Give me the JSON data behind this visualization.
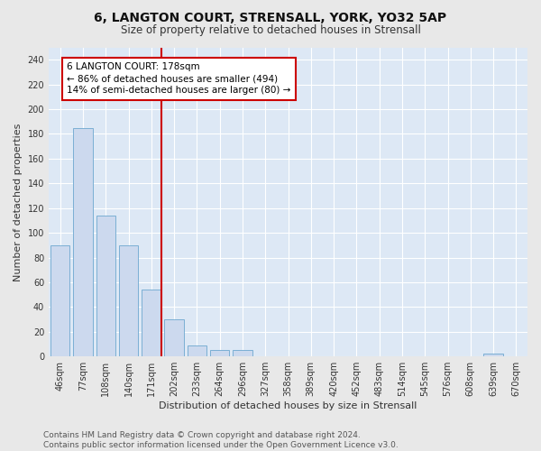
{
  "title1": "6, LANGTON COURT, STRENSALL, YORK, YO32 5AP",
  "title2": "Size of property relative to detached houses in Strensall",
  "xlabel": "Distribution of detached houses by size in Strensall",
  "ylabel": "Number of detached properties",
  "bar_labels": [
    "46sqm",
    "77sqm",
    "108sqm",
    "140sqm",
    "171sqm",
    "202sqm",
    "233sqm",
    "264sqm",
    "296sqm",
    "327sqm",
    "358sqm",
    "389sqm",
    "420sqm",
    "452sqm",
    "483sqm",
    "514sqm",
    "545sqm",
    "576sqm",
    "608sqm",
    "639sqm",
    "670sqm"
  ],
  "bar_values": [
    90,
    185,
    114,
    90,
    54,
    30,
    9,
    5,
    5,
    0,
    0,
    0,
    0,
    0,
    0,
    0,
    0,
    0,
    0,
    2,
    0
  ],
  "bar_color": "#ccd9ee",
  "bar_edge_color": "#7bafd4",
  "vline_color": "#cc0000",
  "annotation_text": "6 LANGTON COURT: 178sqm\n← 86% of detached houses are smaller (494)\n14% of semi-detached houses are larger (80) →",
  "annotation_box_color": "#ffffff",
  "annotation_box_edge": "#cc0000",
  "ylim": [
    0,
    250
  ],
  "yticks": [
    0,
    20,
    40,
    60,
    80,
    100,
    120,
    140,
    160,
    180,
    200,
    220,
    240
  ],
  "bg_color": "#dde8f5",
  "fig_color": "#e8e8e8",
  "footer_text": "Contains HM Land Registry data © Crown copyright and database right 2024.\nContains public sector information licensed under the Open Government Licence v3.0.",
  "title1_fontsize": 10,
  "title2_fontsize": 8.5,
  "xlabel_fontsize": 8,
  "ylabel_fontsize": 8,
  "tick_fontsize": 7,
  "annotation_fontsize": 7.5,
  "footer_fontsize": 6.5
}
